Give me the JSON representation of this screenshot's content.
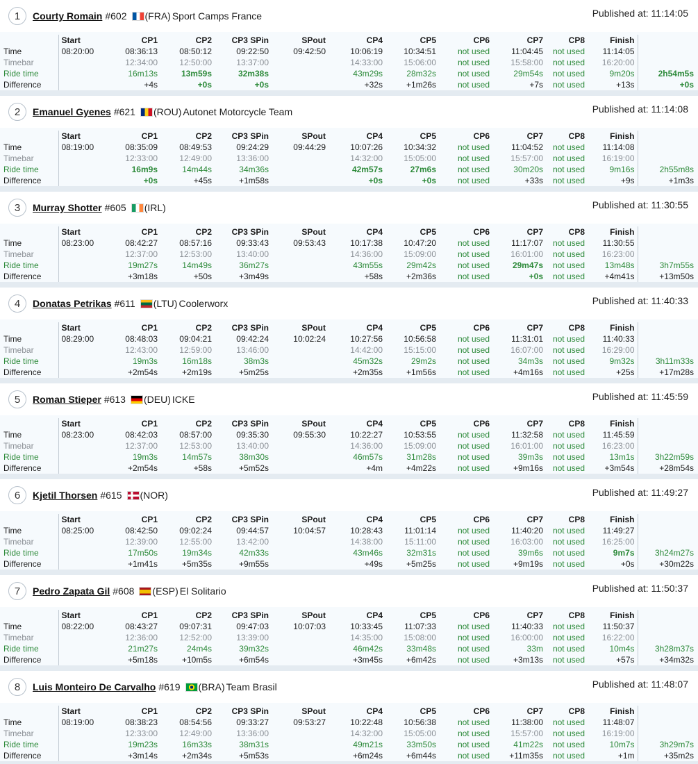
{
  "columns": [
    "Start",
    "CP1",
    "CP2",
    "CP3 SPin",
    "SPout",
    "CP4",
    "CP5",
    "CP6",
    "CP7",
    "CP8",
    "Finish"
  ],
  "row_labels": [
    "Time",
    "Timebar",
    "Ride time",
    "Difference"
  ],
  "published_prefix": "Published at: ",
  "flag_colors": {
    "FRA": [
      "#0055A4",
      "#FFFFFF",
      "#EF4135"
    ],
    "ROU": [
      "#002B7F",
      "#FCD116",
      "#CE1126"
    ],
    "IRL": [
      "#169B62",
      "#FFFFFF",
      "#FF883E"
    ],
    "LTU": [
      "#FDB913",
      "#006A44",
      "#C1272D"
    ],
    "DEU": [
      "#000000",
      "#DD0000",
      "#FFCE00"
    ],
    "NOR": [
      "#BA0C2F",
      "#FFFFFF",
      "#00205B"
    ],
    "ESP": [
      "#AA151B",
      "#F1BF00",
      "#AA151B"
    ],
    "BRA": [
      "#009C3B",
      "#FFDF00",
      "#002776"
    ]
  },
  "riders": [
    {
      "rank": "1",
      "name": "Courty Romain",
      "number": "#602",
      "country": "FRA",
      "country_label": "(FRA)",
      "team": "Sport Camps France",
      "published": "11:14:05",
      "time": [
        "08:20:00",
        "08:36:13",
        "08:50:12",
        "09:22:50",
        "09:42:50",
        "10:06:19",
        "10:34:51",
        "not used",
        "11:04:45",
        "not used",
        "11:14:05",
        ""
      ],
      "timebar": [
        "",
        "12:34:00",
        "12:50:00",
        "13:37:00",
        "",
        "14:33:00",
        "15:06:00",
        "not used",
        "15:58:00",
        "not used",
        "16:20:00",
        ""
      ],
      "ride": [
        "",
        "16m13s",
        "13m59s",
        "32m38s",
        "",
        "43m29s",
        "28m32s",
        "not used",
        "29m54s",
        "not used",
        "9m20s",
        "2h54m5s"
      ],
      "diff": [
        "",
        "+4s",
        "+0s",
        "+0s",
        "",
        "+32s",
        "+1m26s",
        "not used",
        "+7s",
        "not used",
        "+13s",
        "+0s"
      ],
      "bold_ride": [
        2,
        3,
        11
      ],
      "bold_diff": [
        2,
        3,
        11
      ]
    },
    {
      "rank": "2",
      "name": "Emanuel Gyenes",
      "number": "#621",
      "country": "ROU",
      "country_label": "(ROU)",
      "team": "Autonet Motorcycle Team",
      "published": "11:14:08",
      "time": [
        "08:19:00",
        "08:35:09",
        "08:49:53",
        "09:24:29",
        "09:44:29",
        "10:07:26",
        "10:34:32",
        "not used",
        "11:04:52",
        "not used",
        "11:14:08",
        ""
      ],
      "timebar": [
        "",
        "12:33:00",
        "12:49:00",
        "13:36:00",
        "",
        "14:32:00",
        "15:05:00",
        "not used",
        "15:57:00",
        "not used",
        "16:19:00",
        ""
      ],
      "ride": [
        "",
        "16m9s",
        "14m44s",
        "34m36s",
        "",
        "42m57s",
        "27m6s",
        "not used",
        "30m20s",
        "not used",
        "9m16s",
        "2h55m8s"
      ],
      "diff": [
        "",
        "+0s",
        "+45s",
        "+1m58s",
        "",
        "+0s",
        "+0s",
        "not used",
        "+33s",
        "not used",
        "+9s",
        "+1m3s"
      ],
      "bold_ride": [
        1,
        5,
        6
      ],
      "bold_diff": [
        1,
        5,
        6
      ]
    },
    {
      "rank": "3",
      "name": "Murray Shotter",
      "number": "#605",
      "country": "IRL",
      "country_label": "(IRL)",
      "team": "",
      "published": "11:30:55",
      "time": [
        "08:23:00",
        "08:42:27",
        "08:57:16",
        "09:33:43",
        "09:53:43",
        "10:17:38",
        "10:47:20",
        "not used",
        "11:17:07",
        "not used",
        "11:30:55",
        ""
      ],
      "timebar": [
        "",
        "12:37:00",
        "12:53:00",
        "13:40:00",
        "",
        "14:36:00",
        "15:09:00",
        "not used",
        "16:01:00",
        "not used",
        "16:23:00",
        ""
      ],
      "ride": [
        "",
        "19m27s",
        "14m49s",
        "36m27s",
        "",
        "43m55s",
        "29m42s",
        "not used",
        "29m47s",
        "not used",
        "13m48s",
        "3h7m55s"
      ],
      "diff": [
        "",
        "+3m18s",
        "+50s",
        "+3m49s",
        "",
        "+58s",
        "+2m36s",
        "not used",
        "+0s",
        "not used",
        "+4m41s",
        "+13m50s"
      ],
      "bold_ride": [
        8
      ],
      "bold_diff": [
        8
      ]
    },
    {
      "rank": "4",
      "name": "Donatas Petrikas",
      "number": "#611",
      "country": "LTU",
      "country_label": "(LTU)",
      "team": "Coolerworx",
      "published": "11:40:33",
      "time": [
        "08:29:00",
        "08:48:03",
        "09:04:21",
        "09:42:24",
        "10:02:24",
        "10:27:56",
        "10:56:58",
        "not used",
        "11:31:01",
        "not used",
        "11:40:33",
        ""
      ],
      "timebar": [
        "",
        "12:43:00",
        "12:59:00",
        "13:46:00",
        "",
        "14:42:00",
        "15:15:00",
        "not used",
        "16:07:00",
        "not used",
        "16:29:00",
        ""
      ],
      "ride": [
        "",
        "19m3s",
        "16m18s",
        "38m3s",
        "",
        "45m32s",
        "29m2s",
        "not used",
        "34m3s",
        "not used",
        "9m32s",
        "3h11m33s"
      ],
      "diff": [
        "",
        "+2m54s",
        "+2m19s",
        "+5m25s",
        "",
        "+2m35s",
        "+1m56s",
        "not used",
        "+4m16s",
        "not used",
        "+25s",
        "+17m28s"
      ],
      "bold_ride": [],
      "bold_diff": []
    },
    {
      "rank": "5",
      "name": "Roman Stieper",
      "number": "#613",
      "country": "DEU",
      "country_label": "(DEU)",
      "team": "ICKE",
      "published": "11:45:59",
      "time": [
        "08:23:00",
        "08:42:03",
        "08:57:00",
        "09:35:30",
        "09:55:30",
        "10:22:27",
        "10:53:55",
        "not used",
        "11:32:58",
        "not used",
        "11:45:59",
        ""
      ],
      "timebar": [
        "",
        "12:37:00",
        "12:53:00",
        "13:40:00",
        "",
        "14:36:00",
        "15:09:00",
        "not used",
        "16:01:00",
        "not used",
        "16:23:00",
        ""
      ],
      "ride": [
        "",
        "19m3s",
        "14m57s",
        "38m30s",
        "",
        "46m57s",
        "31m28s",
        "not used",
        "39m3s",
        "not used",
        "13m1s",
        "3h22m59s"
      ],
      "diff": [
        "",
        "+2m54s",
        "+58s",
        "+5m52s",
        "",
        "+4m",
        "+4m22s",
        "not used",
        "+9m16s",
        "not used",
        "+3m54s",
        "+28m54s"
      ],
      "bold_ride": [],
      "bold_diff": []
    },
    {
      "rank": "6",
      "name": "Kjetil Thorsen",
      "number": "#615",
      "country": "NOR",
      "country_label": "(NOR)",
      "team": "",
      "published": "11:49:27",
      "time": [
        "08:25:00",
        "08:42:50",
        "09:02:24",
        "09:44:57",
        "10:04:57",
        "10:28:43",
        "11:01:14",
        "not used",
        "11:40:20",
        "not used",
        "11:49:27",
        ""
      ],
      "timebar": [
        "",
        "12:39:00",
        "12:55:00",
        "13:42:00",
        "",
        "14:38:00",
        "15:11:00",
        "not used",
        "16:03:00",
        "not used",
        "16:25:00",
        ""
      ],
      "ride": [
        "",
        "17m50s",
        "19m34s",
        "42m33s",
        "",
        "43m46s",
        "32m31s",
        "not used",
        "39m6s",
        "not used",
        "9m7s",
        "3h24m27s"
      ],
      "diff": [
        "",
        "+1m41s",
        "+5m35s",
        "+9m55s",
        "",
        "+49s",
        "+5m25s",
        "not used",
        "+9m19s",
        "not used",
        "+0s",
        "+30m22s"
      ],
      "bold_ride": [
        10
      ],
      "bold_diff": []
    },
    {
      "rank": "7",
      "name": "Pedro Zapata Gil",
      "number": "#608",
      "country": "ESP",
      "country_label": "(ESP)",
      "team": "El Solitario",
      "published": "11:50:37",
      "time": [
        "08:22:00",
        "08:43:27",
        "09:07:31",
        "09:47:03",
        "10:07:03",
        "10:33:45",
        "11:07:33",
        "not used",
        "11:40:33",
        "not used",
        "11:50:37",
        ""
      ],
      "timebar": [
        "",
        "12:36:00",
        "12:52:00",
        "13:39:00",
        "",
        "14:35:00",
        "15:08:00",
        "not used",
        "16:00:00",
        "not used",
        "16:22:00",
        ""
      ],
      "ride": [
        "",
        "21m27s",
        "24m4s",
        "39m32s",
        "",
        "46m42s",
        "33m48s",
        "not used",
        "33m",
        "not used",
        "10m4s",
        "3h28m37s"
      ],
      "diff": [
        "",
        "+5m18s",
        "+10m5s",
        "+6m54s",
        "",
        "+3m45s",
        "+6m42s",
        "not used",
        "+3m13s",
        "not used",
        "+57s",
        "+34m32s"
      ],
      "bold_ride": [],
      "bold_diff": []
    },
    {
      "rank": "8",
      "name": "Luis Monteiro De Carvalho",
      "number": "#619",
      "country": "BRA",
      "country_label": "(BRA)",
      "team": "Team Brasil",
      "published": "11:48:07",
      "time": [
        "08:19:00",
        "08:38:23",
        "08:54:56",
        "09:33:27",
        "09:53:27",
        "10:22:48",
        "10:56:38",
        "not used",
        "11:38:00",
        "not used",
        "11:48:07",
        ""
      ],
      "timebar": [
        "",
        "12:33:00",
        "12:49:00",
        "13:36:00",
        "",
        "14:32:00",
        "15:05:00",
        "not used",
        "15:57:00",
        "not used",
        "16:19:00",
        ""
      ],
      "ride": [
        "",
        "19m23s",
        "16m33s",
        "38m31s",
        "",
        "49m21s",
        "33m50s",
        "not used",
        "41m22s",
        "not used",
        "10m7s",
        "3h29m7s"
      ],
      "diff": [
        "",
        "+3m14s",
        "+2m34s",
        "+5m53s",
        "",
        "+6m24s",
        "+6m44s",
        "not used",
        "+11m35s",
        "not used",
        "+1m",
        "+35m2s"
      ],
      "bold_ride": [],
      "bold_diff": []
    }
  ]
}
